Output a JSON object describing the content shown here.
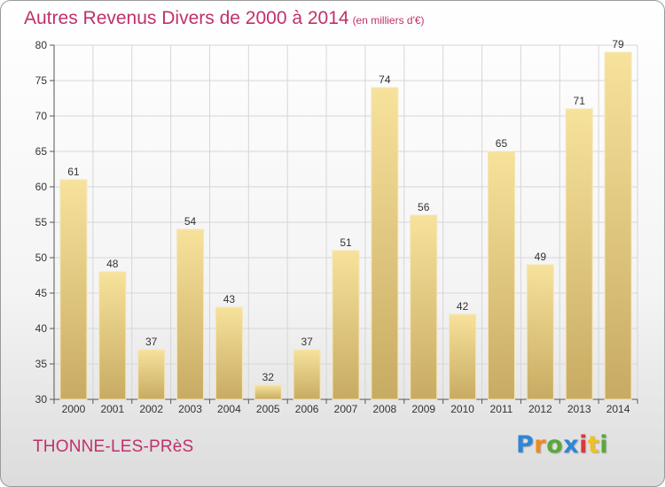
{
  "title": "Autres Revenus Divers de 2000 à 2014",
  "subtitle": "(en milliers d'€)",
  "place": "THONNE-LES-PRèS",
  "logo": {
    "letters": [
      "P",
      "r",
      "o",
      "x",
      "i",
      "t",
      "i"
    ],
    "colors": [
      "#2e86d6",
      "#f08a1c",
      "#5aa83a",
      "#2e86d6",
      "#d63a3a",
      "#f0c21c",
      "#5aa83a"
    ]
  },
  "colors": {
    "title": "#c0306b",
    "bar_light": "#f7e29c",
    "bar_dark": "#c8ab62",
    "grid": "#d6d6d6"
  },
  "chart_data": {
    "type": "bar",
    "title": "Autres Revenus Divers de 2000 à 2014",
    "subtitle": "(en milliers d'€)",
    "categories": [
      "2000",
      "2001",
      "2002",
      "2003",
      "2004",
      "2005",
      "2006",
      "2007",
      "2008",
      "2009",
      "2010",
      "2011",
      "2012",
      "2013",
      "2014"
    ],
    "values": [
      61,
      48,
      37,
      54,
      43,
      32,
      37,
      51,
      74,
      56,
      42,
      65,
      49,
      71,
      79
    ],
    "ylim": [
      30,
      80
    ],
    "yticks": [
      30,
      35,
      40,
      45,
      50,
      55,
      60,
      65,
      70,
      75,
      80
    ],
    "grid": true,
    "legend": "none"
  }
}
